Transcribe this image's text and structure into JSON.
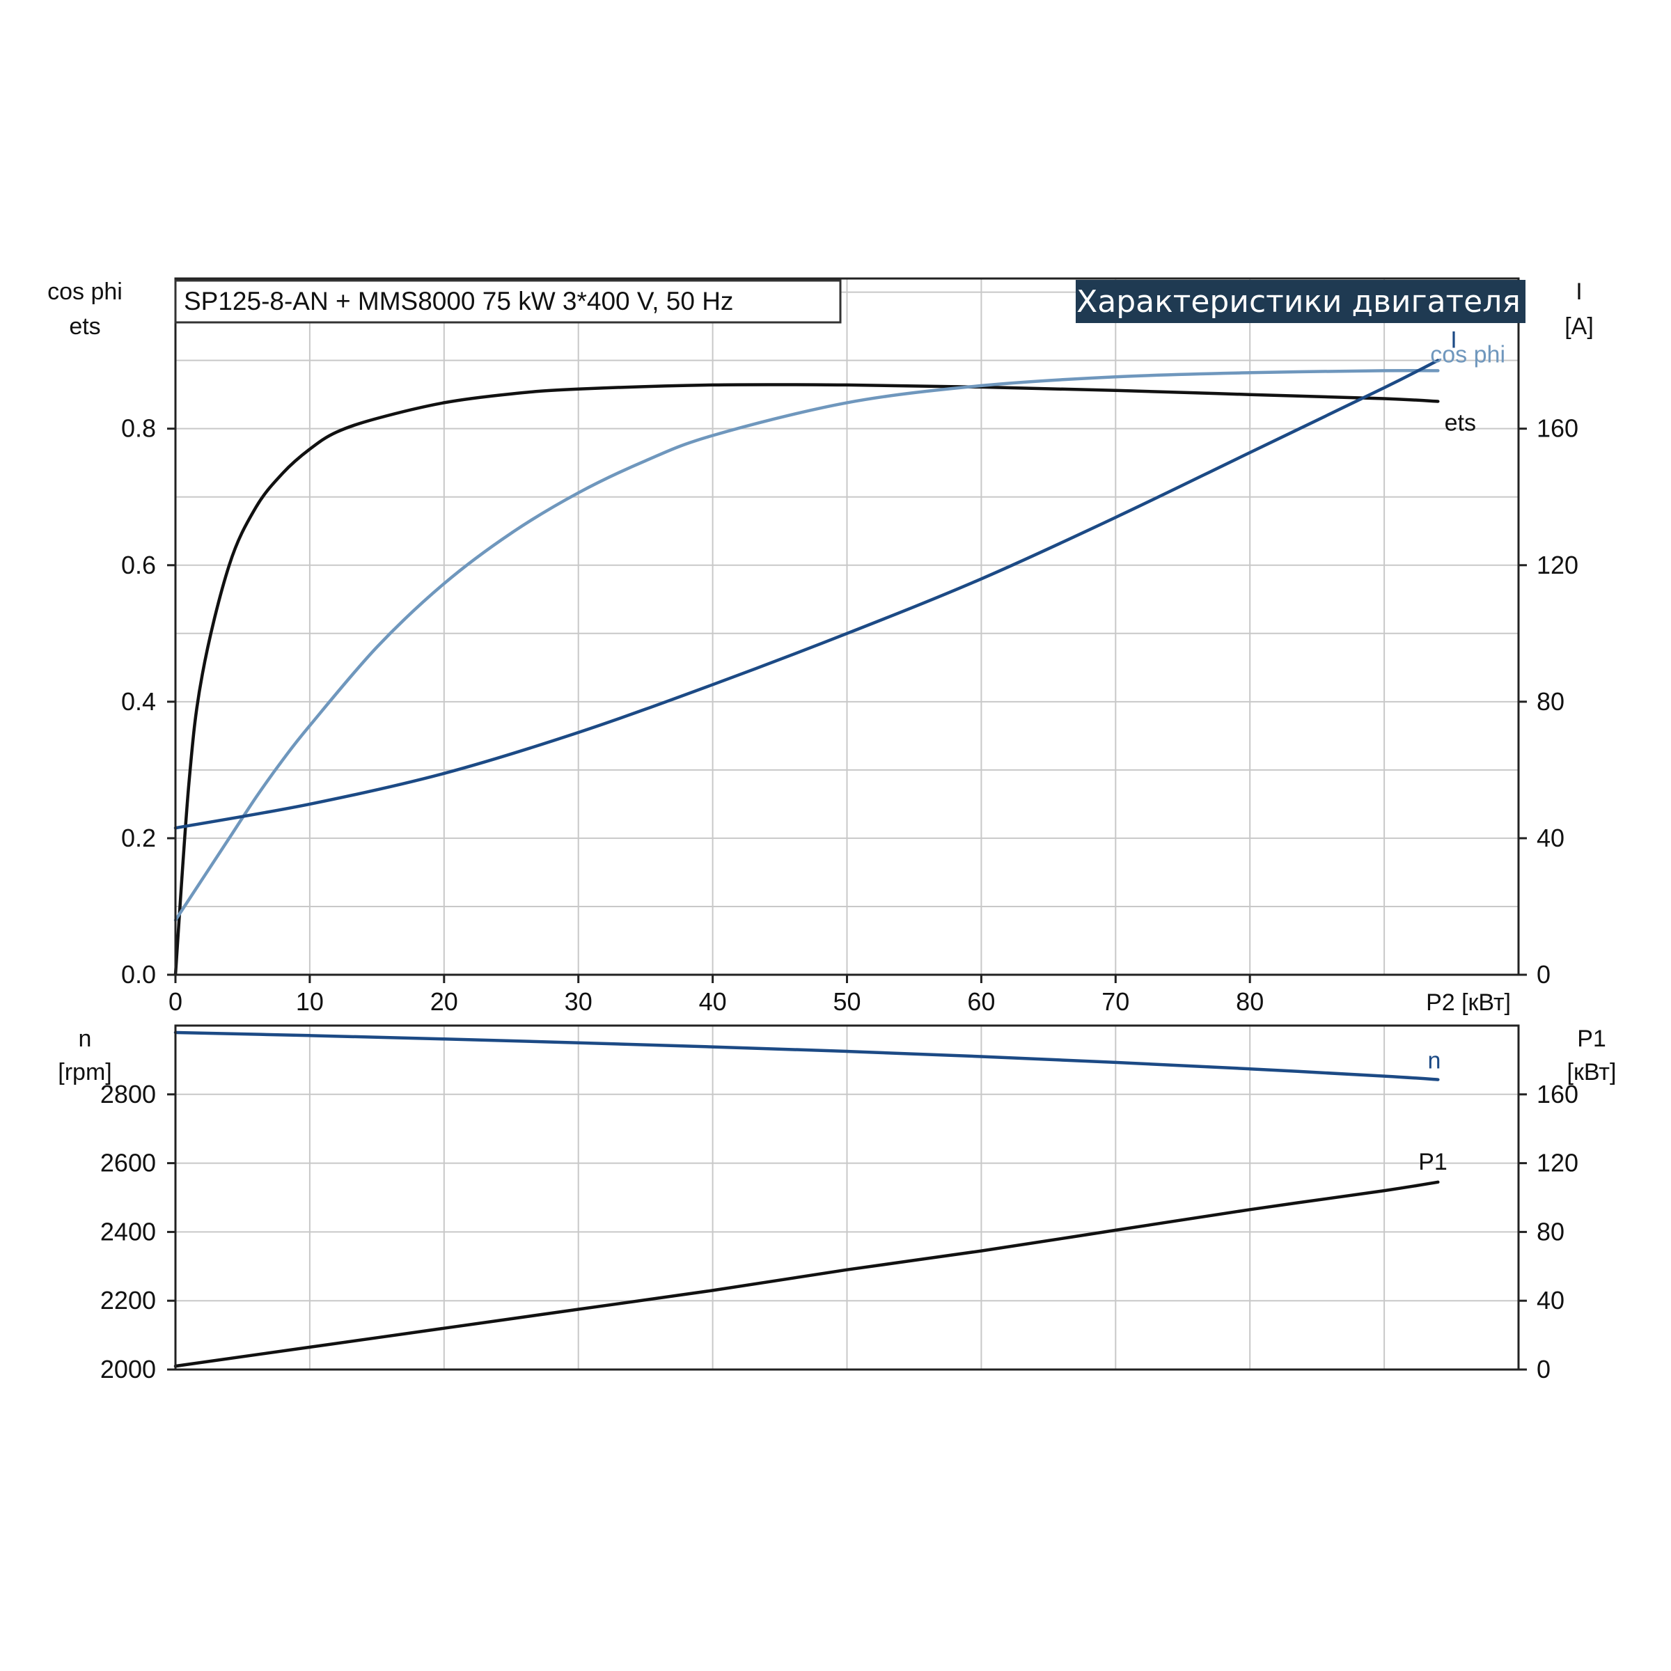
{
  "chart_data": [
    {
      "type": "line",
      "title": "SP125-8-AN + MMS8000   75 kW   3*400 V, 50 Hz",
      "subtitle": "Характеристики двигателя",
      "xlabel": "P2 [кВт]",
      "x_ticks": [
        "0",
        "10",
        "20",
        "30",
        "40",
        "50",
        "60",
        "70",
        "80"
      ],
      "xlim": [
        0,
        100
      ],
      "left_axis": {
        "label_line1": "cos phi",
        "label_line2": "ets",
        "ticks": [
          "0.0",
          "0.2",
          "0.4",
          "0.6",
          "0.8"
        ],
        "ylim": [
          0,
          1.02
        ]
      },
      "right_axis": {
        "label_line1": "I",
        "label_line2": "[A]",
        "ticks": [
          "0",
          "40",
          "80",
          "120",
          "160"
        ],
        "ylim": [
          0,
          204
        ]
      },
      "grid": true,
      "series": [
        {
          "name": "ets",
          "axis": "left",
          "color": "#111111",
          "x": [
            0,
            1,
            2,
            4,
            6,
            8,
            10,
            12,
            15,
            20,
            25,
            30,
            40,
            50,
            60,
            70,
            80,
            90,
            94
          ],
          "y": [
            0.0,
            0.28,
            0.44,
            0.6,
            0.685,
            0.735,
            0.77,
            0.795,
            0.815,
            0.838,
            0.851,
            0.858,
            0.864,
            0.864,
            0.861,
            0.856,
            0.85,
            0.844,
            0.84
          ]
        },
        {
          "name": "cos phi",
          "axis": "left",
          "color": "#6f97bd",
          "x": [
            0,
            2,
            4,
            6,
            8,
            10,
            15,
            20,
            25,
            30,
            35,
            40,
            50,
            60,
            70,
            80,
            90,
            94
          ],
          "y": [
            0.08,
            0.14,
            0.2,
            0.26,
            0.315,
            0.365,
            0.48,
            0.573,
            0.647,
            0.706,
            0.753,
            0.79,
            0.838,
            0.863,
            0.876,
            0.882,
            0.885,
            0.885
          ]
        },
        {
          "name": "I",
          "axis": "right",
          "color": "#1c4a85",
          "x": [
            0,
            10,
            20,
            30,
            40,
            50,
            60,
            70,
            80,
            90,
            94
          ],
          "y": [
            43,
            50,
            59,
            71,
            85,
            100,
            116,
            134,
            153,
            172,
            180
          ]
        }
      ]
    },
    {
      "type": "line",
      "xlabel": "",
      "xlim": [
        0,
        100
      ],
      "left_axis": {
        "label_line1": "n",
        "label_line2": "[rpm]",
        "ticks": [
          "2000",
          "2200",
          "2400",
          "2600",
          "2800"
        ],
        "ylim": [
          2000,
          3000
        ]
      },
      "right_axis": {
        "label_line1": "P1",
        "label_line2": "[кВт]",
        "ticks": [
          "0",
          "40",
          "80",
          "120",
          "160"
        ],
        "ylim": [
          0,
          200
        ]
      },
      "grid": true,
      "series": [
        {
          "name": "n",
          "axis": "left",
          "color": "#1c4a85",
          "x": [
            0,
            10,
            20,
            30,
            40,
            50,
            60,
            70,
            80,
            90,
            94
          ],
          "y": [
            2980,
            2971,
            2961,
            2950,
            2938,
            2925,
            2910,
            2893,
            2874,
            2853,
            2843
          ]
        },
        {
          "name": "P1",
          "axis": "right",
          "color": "#111111",
          "x": [
            0,
            10,
            20,
            30,
            40,
            50,
            60,
            70,
            80,
            90,
            94
          ],
          "y": [
            2,
            13,
            24,
            35,
            46,
            58,
            69,
            81,
            93,
            104,
            109
          ]
        }
      ]
    }
  ]
}
